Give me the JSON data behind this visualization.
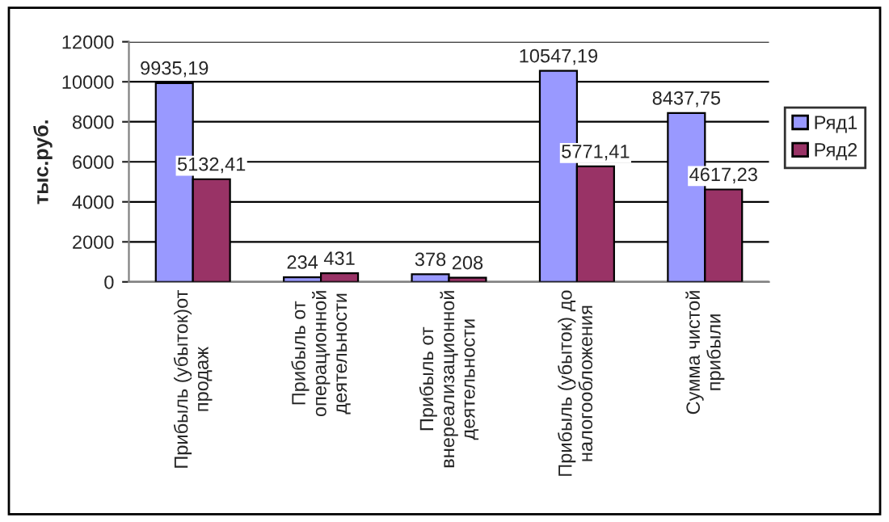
{
  "chart_data": {
    "type": "bar",
    "ylabel": "тыс.руб.",
    "categories": [
      "Прибыль (убыток)от\nпродаж",
      "Прибыль от\nоперационной\nдеятельности",
      "Прибыль от\nвнереализационной\nдеятельности",
      "Прибыль (убыток) до\nналогообложения",
      "Сумма чистой\nприбыли"
    ],
    "series": [
      {
        "name": "Ряд1",
        "color": "#9999ff",
        "values": [
          9935.19,
          234,
          378,
          10547.19,
          8437.75
        ],
        "value_labels": [
          "9935,19",
          "234",
          "378",
          "10547,19",
          "8437,75"
        ]
      },
      {
        "name": "Ряд2",
        "color": "#993366",
        "values": [
          5132.41,
          431,
          208,
          5771.41,
          4617.23
        ],
        "value_labels": [
          "5132,41",
          "431",
          "208",
          "5771,41",
          "4617,23"
        ]
      }
    ],
    "ylim": [
      0,
      12000
    ],
    "yticks": [
      0,
      2000,
      4000,
      6000,
      8000,
      10000,
      12000
    ],
    "grid": "y",
    "legend": "right"
  }
}
